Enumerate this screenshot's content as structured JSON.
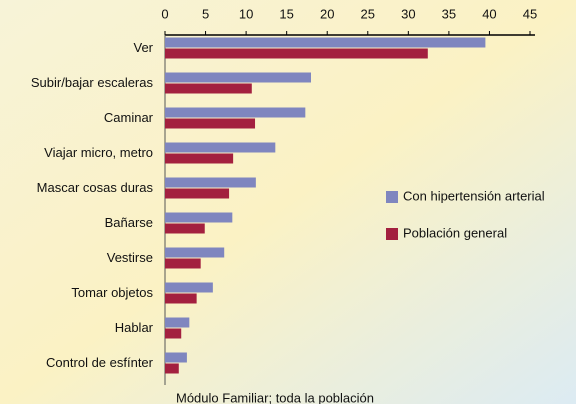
{
  "chart_data": {
    "type": "hbar",
    "categories": [
      "Ver",
      "Subir/bajar escaleras",
      "Caminar",
      "Viajar micro, metro",
      "Mascar cosas duras",
      "Bañarse",
      "Vestirse",
      "Tomar objetos",
      "Hablar",
      "Control de esfínter"
    ],
    "series": [
      {
        "name": "Con hipertensión arterial",
        "color": "#7f86bf",
        "values": [
          39.5,
          18,
          17.3,
          13.6,
          11.2,
          8.3,
          7.3,
          5.9,
          3,
          2.7
        ]
      },
      {
        "name": "Población general",
        "color": "#a3203f",
        "values": [
          32.4,
          10.7,
          11.1,
          8.4,
          7.9,
          4.9,
          4.4,
          3.9,
          2,
          1.7
        ]
      }
    ],
    "xlim": [
      0,
      45
    ],
    "xticks": [
      0,
      5,
      10,
      15,
      20,
      25,
      30,
      35,
      40,
      45
    ],
    "legend": "right",
    "footnote": "Módulo Familiar; toda la población"
  }
}
